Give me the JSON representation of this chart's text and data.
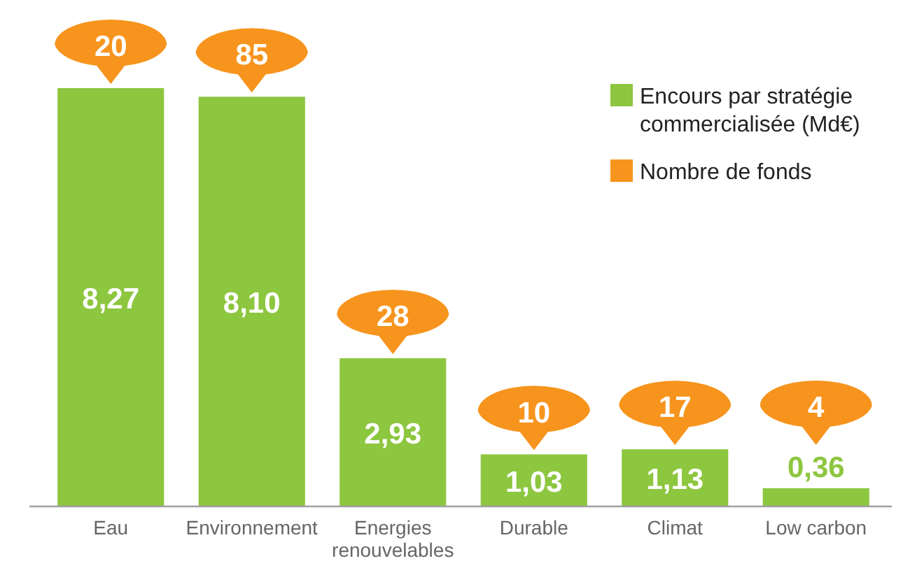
{
  "chart_data": {
    "type": "bar",
    "categories": [
      "Eau",
      "Environnement",
      "Energies renouvelables",
      "Durable",
      "Climat",
      "Low carbon"
    ],
    "series": [
      {
        "name": "Encours par stratégie commercialisée (Md€)",
        "color": "#8dc63f",
        "values": [
          8.27,
          8.1,
          2.93,
          1.03,
          1.13,
          0.36
        ],
        "value_labels": [
          "8,27",
          "8,10",
          "2,93",
          "1,03",
          "1,13",
          "0,36"
        ]
      }
    ],
    "annotations": [
      "Nombre de fonds",
      {
        "text": "20",
        "x": "Eau",
        "y": 8.27
      },
      {
        "text": "85",
        "x": "Environnement",
        "y": 8.1
      },
      {
        "text": "28",
        "x": "Energies renouvelables",
        "y": 2.93
      },
      {
        "text": "10",
        "x": "Durable",
        "y": 1.03
      },
      {
        "text": "17",
        "x": "Climat",
        "y": 1.13
      },
      {
        "text": "4",
        "x": "Low carbon",
        "y": 0.36
      }
    ],
    "legend": "right"
  }
}
